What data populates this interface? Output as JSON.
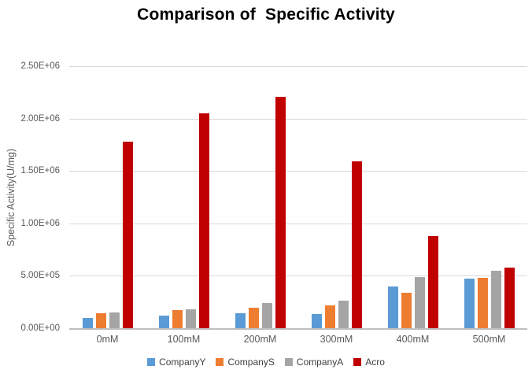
{
  "chart_data": {
    "type": "bar",
    "title": "Comparison of  Specific Activity",
    "ylabel": "Specific Activity(U/mg)",
    "xlabel": "",
    "categories": [
      "0mM",
      "100mM",
      "200mM",
      "300mM",
      "400mM",
      "500mM"
    ],
    "series": [
      {
        "name": "CompanyY",
        "color": "#5B9BD5",
        "values": [
          95000,
          120000,
          140000,
          135000,
          400000,
          470000
        ]
      },
      {
        "name": "CompanyS",
        "color": "#ED7D31",
        "values": [
          140000,
          170000,
          195000,
          220000,
          335000,
          480000
        ]
      },
      {
        "name": "CompanyA",
        "color": "#A5A5A5",
        "values": [
          150000,
          180000,
          240000,
          260000,
          485000,
          545000
        ]
      },
      {
        "name": "Acro",
        "color": "#C00000",
        "values": [
          1780000,
          2050000,
          2210000,
          1590000,
          880000,
          575000
        ]
      }
    ],
    "ylim": [
      0,
      2500000
    ],
    "ytick_labels": [
      "0.00E+00",
      "5.00E+05",
      "1.00E+06",
      "1.50E+06",
      "2.00E+06",
      "2.50E+06"
    ],
    "grid": true,
    "legend_position": "bottom",
    "colors": {
      "grid": "#d9d9d9",
      "axis_line": "#bfbfbf",
      "axis_text": "#595959",
      "legend_text": "#404040",
      "title_text": "#000000",
      "background": "#ffffff"
    }
  }
}
